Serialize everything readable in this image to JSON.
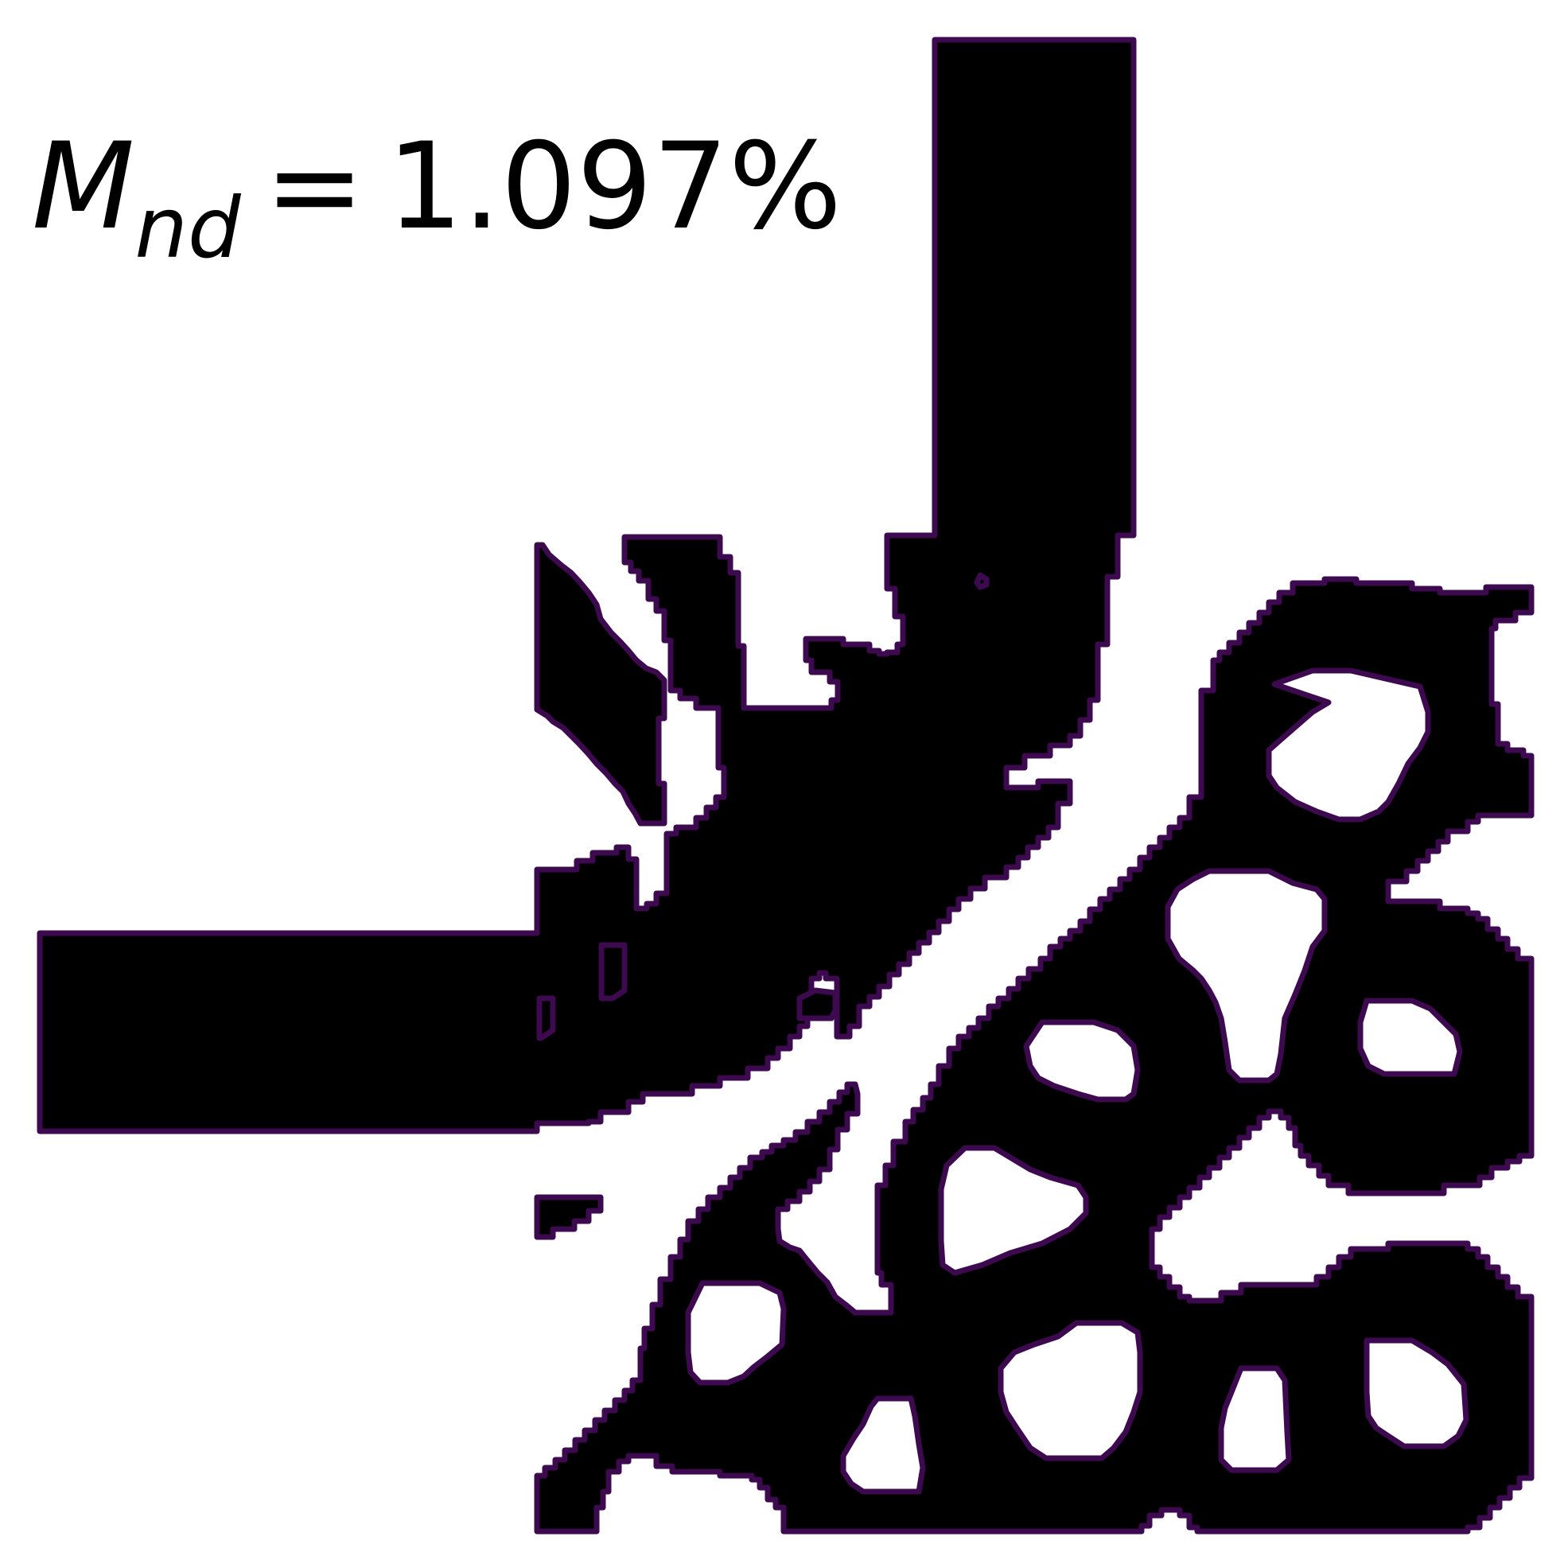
{
  "metric": {
    "symbol": "M",
    "subscript": "nd",
    "equals": "=",
    "value": "1.097%"
  },
  "colors": {
    "material": "#000000",
    "outline": "#3d0a4f",
    "background": "#ffffff"
  }
}
